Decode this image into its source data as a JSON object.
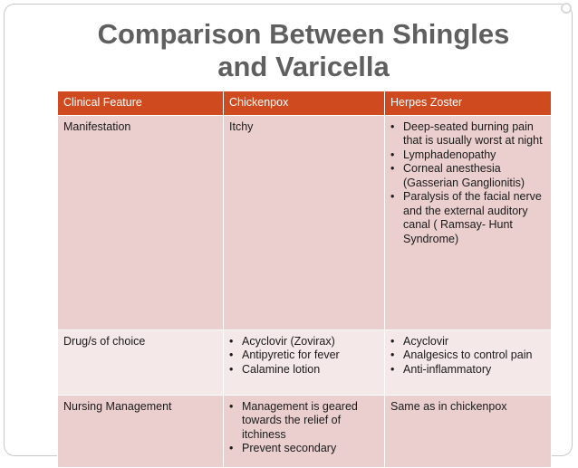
{
  "title": {
    "line1": "Comparison Between Shingles",
    "line2": "and Varicella"
  },
  "table": {
    "headers": [
      "Clinical Feature",
      "Chickenpox",
      "Herpes Zoster"
    ],
    "rows": [
      {
        "feature": "Manifestation",
        "chickenpox": {
          "text": "Itchy",
          "items": []
        },
        "zoster": {
          "text": "",
          "items": [
            "Deep-seated burning pain that is usually worst at night",
            "Lymphadenopathy",
            "Corneal anesthesia (Gasserian Ganglionitis)",
            "Paralysis of the facial nerve and the external auditory canal ( Ramsay- Hunt Syndrome)"
          ]
        }
      },
      {
        "feature": "Drug/s of choice",
        "chickenpox": {
          "text": "",
          "items": [
            "Acyclovir (Zovirax)",
            "Antipyretic for fever",
            "Calamine lotion"
          ]
        },
        "zoster": {
          "text": "",
          "items": [
            "Acyclovir",
            "Analgesics to control pain",
            "Anti-inflammatory"
          ]
        }
      },
      {
        "feature": "Nursing Management",
        "chickenpox": {
          "text": "",
          "items": [
            "Management is geared towards the relief of itchiness",
            "Prevent secondary"
          ]
        },
        "zoster": {
          "text": "Same as in chickenpox",
          "items": []
        }
      }
    ]
  },
  "colors": {
    "header_bg": "#d04a1f",
    "row_odd_bg": "#eacfce",
    "row_even_bg": "#f5e8e8",
    "title_color": "#5f5f5f"
  }
}
